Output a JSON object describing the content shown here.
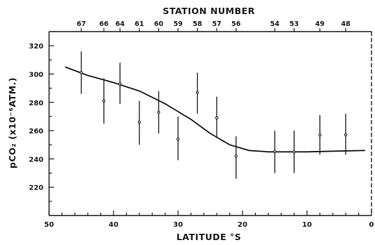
{
  "chart_data": {
    "type": "scatter",
    "xlabel": "LATITUDE °S",
    "ylabel": "pCO₂ (x10⁻⁶ATM.)",
    "top_axis_title": "STATION NUMBER",
    "xlim": [
      50,
      0
    ],
    "ylim": [
      200,
      330
    ],
    "x_ticks": [
      50,
      40,
      30,
      20,
      10,
      0
    ],
    "y_ticks": [
      220,
      240,
      260,
      280,
      300,
      320
    ],
    "grid": false,
    "stations": [
      {
        "label": "67",
        "lat": 45
      },
      {
        "label": "66",
        "lat": 41.5
      },
      {
        "label": "64",
        "lat": 39
      },
      {
        "label": "61",
        "lat": 36
      },
      {
        "label": "60",
        "lat": 33
      },
      {
        "label": "59",
        "lat": 30
      },
      {
        "label": "58",
        "lat": 27
      },
      {
        "label": "57",
        "lat": 24
      },
      {
        "label": "56",
        "lat": 21
      },
      {
        "label": "54",
        "lat": 15
      },
      {
        "label": "53",
        "lat": 12
      },
      {
        "label": "49",
        "lat": 8
      },
      {
        "label": "48",
        "lat": 4
      }
    ],
    "series": [
      {
        "points": [
          {
            "x": 45,
            "y": 301,
            "ylow": 286,
            "yhigh": 316
          },
          {
            "x": 41.5,
            "y": 281,
            "ylow": 265,
            "yhigh": 297
          },
          {
            "x": 39,
            "y": 293,
            "ylow": 279,
            "yhigh": 308
          },
          {
            "x": 36,
            "y": 266,
            "ylow": 250,
            "yhigh": 281
          },
          {
            "x": 33,
            "y": 273,
            "ylow": 258,
            "yhigh": 288
          },
          {
            "x": 30,
            "y": 254,
            "ylow": 239,
            "yhigh": 270
          },
          {
            "x": 27,
            "y": 287,
            "ylow": 272,
            "yhigh": 301
          },
          {
            "x": 24,
            "y": 269,
            "ylow": 255,
            "yhigh": 284
          },
          {
            "x": 21,
            "y": 242,
            "ylow": 226,
            "yhigh": 256
          },
          {
            "x": 15,
            "y": 245,
            "ylow": 230,
            "yhigh": 260
          },
          {
            "x": 12,
            "y": 245,
            "ylow": 230,
            "yhigh": 260
          },
          {
            "x": 8,
            "y": 257,
            "ylow": 243,
            "yhigh": 271
          },
          {
            "x": 4,
            "y": 257,
            "ylow": 243,
            "yhigh": 272
          }
        ]
      },
      {
        "curve": [
          {
            "x": 47.5,
            "y": 305
          },
          {
            "x": 44,
            "y": 299
          },
          {
            "x": 40,
            "y": 294
          },
          {
            "x": 36,
            "y": 288
          },
          {
            "x": 32,
            "y": 279
          },
          {
            "x": 28,
            "y": 268
          },
          {
            "x": 25,
            "y": 258
          },
          {
            "x": 22,
            "y": 250
          },
          {
            "x": 19,
            "y": 246
          },
          {
            "x": 16,
            "y": 245
          },
          {
            "x": 10,
            "y": 245
          },
          {
            "x": 1,
            "y": 246
          }
        ]
      }
    ]
  }
}
